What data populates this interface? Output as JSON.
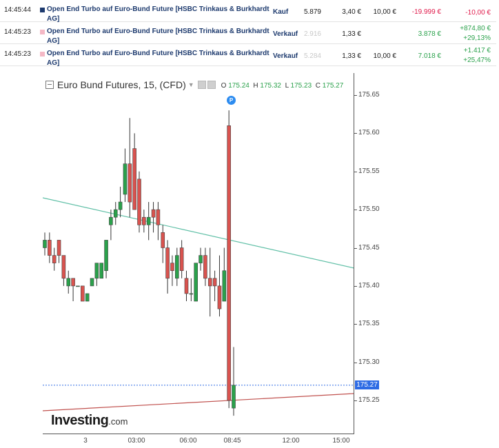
{
  "trades": [
    {
      "time": "14:45:44",
      "marker_color": "#1d3a6e",
      "name_line1": "Open End Turbo auf Euro-Bund Future [HSBC Trinkaus & Burkhardt",
      "name_line2": "AG]",
      "type": "Kauf",
      "qty": "5.879",
      "qty_muted": false,
      "price": "3,40 €",
      "fee": "10,00 €",
      "result": "-19.999 €",
      "result_class": "neg",
      "pl1": "-10,00 €",
      "pl2": "",
      "pl_class": "neg"
    },
    {
      "time": "14:45:23",
      "marker_color": "#f4b8c5",
      "name_line1": "Open End Turbo auf Euro-Bund Future [HSBC Trinkaus & Burkhardt",
      "name_line2": "AG]",
      "type": "Verkauf",
      "qty": "2.916",
      "qty_muted": true,
      "price": "1,33 €",
      "fee": "",
      "result": "3.878 €",
      "result_class": "pos",
      "pl1": "+874,80 €",
      "pl2": "+29,13%",
      "pl_class": "pos"
    },
    {
      "time": "14:45:23",
      "marker_color": "#f4b8c5",
      "name_line1": "Open End Turbo auf Euro-Bund Future [HSBC Trinkaus & Burkhardt",
      "name_line2": "AG]",
      "type": "Verkauf",
      "qty": "5.284",
      "qty_muted": true,
      "price": "1,33 €",
      "fee": "10,00 €",
      "result": "7.018 €",
      "result_class": "pos",
      "pl1": "+1.417 €",
      "pl2": "+25,47%",
      "pl_class": "pos"
    }
  ],
  "chart": {
    "instrument": "Euro Bund Futures, 15, (CFD)",
    "ohlc": {
      "o_label": "O",
      "o": "175.24",
      "h_label": "H",
      "h": "175.32",
      "l_label": "L",
      "l": "175.23",
      "c_label": "C",
      "c": "175.27"
    },
    "current_price": "175.27",
    "marker_label": "P",
    "logo_main": "Investing",
    "logo_suffix": ".com"
  },
  "chart_data": {
    "type": "candlestick",
    "y_ticks": [
      "175.65",
      "175.60",
      "175.55",
      "175.50",
      "175.45",
      "175.40",
      "175.35",
      "175.30",
      "175.25"
    ],
    "ylim": [
      175.2,
      175.67
    ],
    "x_ticks": [
      "3",
      "03:00",
      "06:00",
      "08:45",
      "12:00",
      "15:00"
    ],
    "colors": {
      "up": "#2aa14b",
      "down": "#d9534f",
      "trend_upper": "#5fbfa6",
      "trend_lower": "#c0504d",
      "price_line": "#2d6be4"
    },
    "candles": [
      {
        "o": 175.45,
        "h": 175.47,
        "l": 175.44,
        "c": 175.46
      },
      {
        "o": 175.46,
        "h": 175.47,
        "l": 175.43,
        "c": 175.44
      },
      {
        "o": 175.44,
        "h": 175.45,
        "l": 175.42,
        "c": 175.43
      },
      {
        "o": 175.46,
        "h": 175.46,
        "l": 175.43,
        "c": 175.44
      },
      {
        "o": 175.44,
        "h": 175.44,
        "l": 175.4,
        "c": 175.41
      },
      {
        "o": 175.4,
        "h": 175.42,
        "l": 175.39,
        "c": 175.41
      },
      {
        "o": 175.41,
        "h": 175.41,
        "l": 175.38,
        "c": 175.4
      },
      {
        "o": 175.4,
        "h": 175.4,
        "l": 175.4,
        "c": 175.4
      },
      {
        "o": 175.4,
        "h": 175.4,
        "l": 175.38,
        "c": 175.38
      },
      {
        "o": 175.38,
        "h": 175.39,
        "l": 175.38,
        "c": 175.39
      },
      {
        "o": 175.4,
        "h": 175.41,
        "l": 175.4,
        "c": 175.41
      },
      {
        "o": 175.41,
        "h": 175.43,
        "l": 175.4,
        "c": 175.43
      },
      {
        "o": 175.41,
        "h": 175.43,
        "l": 175.41,
        "c": 175.43
      },
      {
        "o": 175.42,
        "h": 175.46,
        "l": 175.41,
        "c": 175.46
      },
      {
        "o": 175.48,
        "h": 175.5,
        "l": 175.46,
        "c": 175.49
      },
      {
        "o": 175.49,
        "h": 175.51,
        "l": 175.48,
        "c": 175.5
      },
      {
        "o": 175.5,
        "h": 175.53,
        "l": 175.49,
        "c": 175.51
      },
      {
        "o": 175.52,
        "h": 175.58,
        "l": 175.51,
        "c": 175.56
      },
      {
        "o": 175.56,
        "h": 175.62,
        "l": 175.49,
        "c": 175.51
      },
      {
        "o": 175.58,
        "h": 175.6,
        "l": 175.5,
        "c": 175.5
      },
      {
        "o": 175.54,
        "h": 175.55,
        "l": 175.47,
        "c": 175.48
      },
      {
        "o": 175.49,
        "h": 175.5,
        "l": 175.47,
        "c": 175.48
      },
      {
        "o": 175.48,
        "h": 175.51,
        "l": 175.46,
        "c": 175.49
      },
      {
        "o": 175.5,
        "h": 175.51,
        "l": 175.47,
        "c": 175.49
      },
      {
        "o": 175.5,
        "h": 175.51,
        "l": 175.46,
        "c": 175.48
      },
      {
        "o": 175.47,
        "h": 175.48,
        "l": 175.43,
        "c": 175.45
      },
      {
        "o": 175.45,
        "h": 175.46,
        "l": 175.39,
        "c": 175.41
      },
      {
        "o": 175.43,
        "h": 175.44,
        "l": 175.4,
        "c": 175.42
      },
      {
        "o": 175.41,
        "h": 175.45,
        "l": 175.4,
        "c": 175.44
      },
      {
        "o": 175.45,
        "h": 175.46,
        "l": 175.41,
        "c": 175.42
      },
      {
        "o": 175.41,
        "h": 175.42,
        "l": 175.38,
        "c": 175.39
      },
      {
        "o": 175.39,
        "h": 175.41,
        "l": 175.38,
        "c": 175.39
      },
      {
        "o": 175.38,
        "h": 175.43,
        "l": 175.38,
        "c": 175.43
      },
      {
        "o": 175.43,
        "h": 175.45,
        "l": 175.42,
        "c": 175.44
      },
      {
        "o": 175.44,
        "h": 175.45,
        "l": 175.4,
        "c": 175.41
      },
      {
        "o": 175.41,
        "h": 175.45,
        "l": 175.36,
        "c": 175.4
      },
      {
        "o": 175.41,
        "h": 175.42,
        "l": 175.38,
        "c": 175.4
      },
      {
        "o": 175.4,
        "h": 175.44,
        "l": 175.36,
        "c": 175.37
      },
      {
        "o": 175.38,
        "h": 175.45,
        "l": 175.38,
        "c": 175.42
      },
      {
        "o": 175.61,
        "h": 175.63,
        "l": 175.24,
        "c": 175.25
      },
      {
        "o": 175.24,
        "h": 175.32,
        "l": 175.23,
        "c": 175.27
      }
    ]
  }
}
